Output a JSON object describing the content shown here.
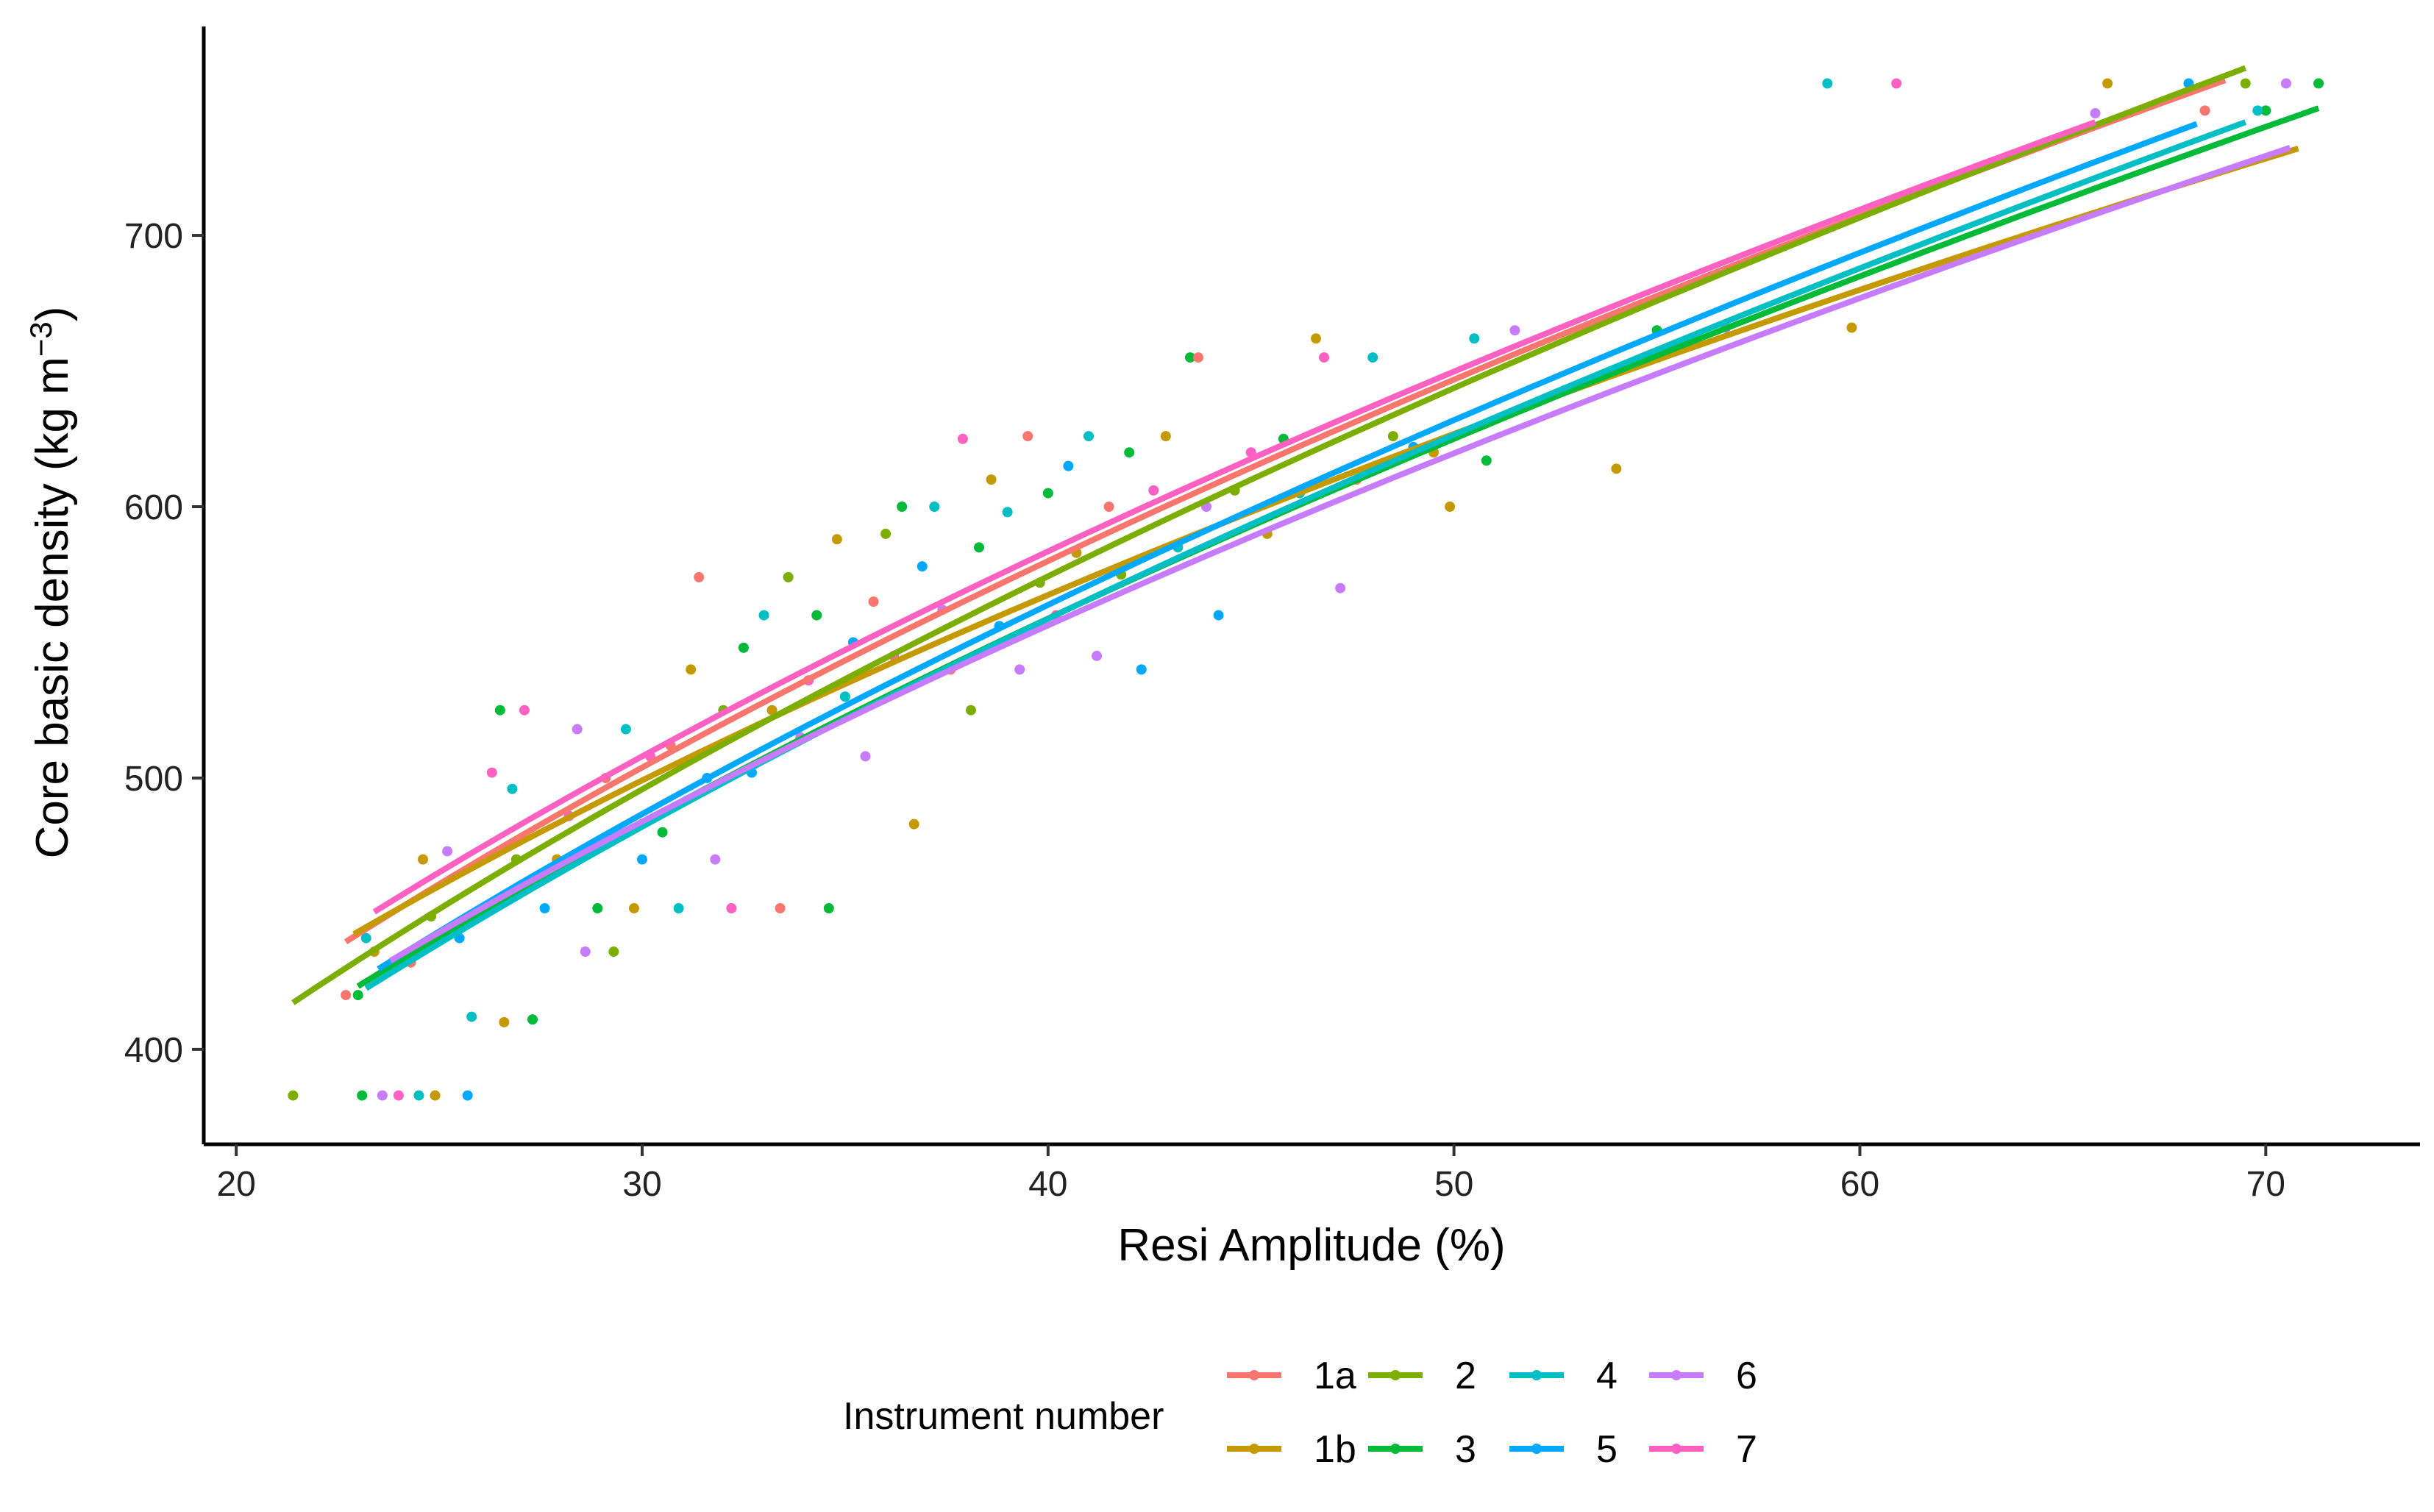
{
  "chart_data": {
    "type": "scatter",
    "xlabel": "Resi Amplitude (%)",
    "ylabel": "Core basic density (kg m−3)",
    "ylabel_parts": {
      "main": "Core basic density (kg m",
      "superscript": "−3",
      "close": ")"
    },
    "xlim": [
      19.2,
      73.8
    ],
    "ylim": [
      365,
      777
    ],
    "x_ticks": [
      20,
      30,
      40,
      50,
      60,
      70
    ],
    "y_ticks": [
      400,
      500,
      600,
      700
    ],
    "x_tick_labels": [
      "20",
      "30",
      "40",
      "50",
      "60",
      "70"
    ],
    "y_tick_labels": [
      "400",
      "500",
      "600",
      "700"
    ],
    "grid": false,
    "legend_title": "Instrument number",
    "legend_position": "bottom",
    "series": [
      {
        "name": "1a",
        "color": "#F8766D",
        "fit_a": 95.5,
        "fit_b": 0.489,
        "x_range": [
          22.7,
          69.0
        ]
      },
      {
        "name": "1b",
        "color": "#C49A00",
        "fit_a": 109.5,
        "fit_b": 0.446,
        "x_range": [
          22.9,
          70.8
        ]
      },
      {
        "name": "2",
        "color": "#7CAE00",
        "fit_a": 87.2,
        "fit_b": 0.511,
        "x_range": [
          21.4,
          69.5
        ]
      },
      {
        "name": "3",
        "color": "#00BA38",
        "fit_a": 87.7,
        "fit_b": 0.502,
        "x_range": [
          23.0,
          71.3
        ]
      },
      {
        "name": "4",
        "color": "#00BFC4",
        "fit_a": 84.2,
        "fit_b": 0.513,
        "x_range": [
          23.2,
          69.5
        ]
      },
      {
        "name": "5",
        "color": "#00A9FF",
        "fit_a": 85.6,
        "fit_b": 0.511,
        "x_range": [
          23.5,
          68.3
        ]
      },
      {
        "name": "6",
        "color": "#C77CFF",
        "fit_a": 93.3,
        "fit_b": 0.484,
        "x_range": [
          23.8,
          70.6
        ]
      },
      {
        "name": "7",
        "color": "#FF61C3",
        "fit_a": 98.6,
        "fit_b": 0.482,
        "x_range": [
          23.4,
          65.8
        ]
      }
    ],
    "points": [
      [
        21.4,
        383,
        2
      ],
      [
        22.7,
        420,
        0
      ],
      [
        23.0,
        420,
        3
      ],
      [
        23.2,
        441,
        4
      ],
      [
        23.4,
        436,
        1
      ],
      [
        23.1,
        383,
        3
      ],
      [
        23.6,
        383,
        6
      ],
      [
        24.0,
        383,
        7
      ],
      [
        24.5,
        383,
        4
      ],
      [
        24.9,
        383,
        1
      ],
      [
        25.7,
        383,
        5
      ],
      [
        24.3,
        432,
        0
      ],
      [
        24.6,
        470,
        1
      ],
      [
        24.8,
        449,
        2
      ],
      [
        25.2,
        473,
        6
      ],
      [
        25.5,
        441,
        5
      ],
      [
        25.8,
        412,
        4
      ],
      [
        26.1,
        452,
        0
      ],
      [
        26.3,
        502,
        7
      ],
      [
        26.5,
        525,
        3
      ],
      [
        26.6,
        410,
        1
      ],
      [
        26.9,
        470,
        2
      ],
      [
        27.1,
        525,
        7
      ],
      [
        27.3,
        411,
        3
      ],
      [
        26.8,
        496,
        4
      ],
      [
        27.6,
        452,
        5
      ],
      [
        27.9,
        470,
        1
      ],
      [
        28.2,
        486,
        7
      ],
      [
        28.4,
        518,
        6
      ],
      [
        28.6,
        436,
        6
      ],
      [
        28.9,
        452,
        3
      ],
      [
        29.1,
        500,
        0
      ],
      [
        29.3,
        436,
        2
      ],
      [
        29.6,
        518,
        4
      ],
      [
        29.8,
        452,
        1
      ],
      [
        30.0,
        470,
        5
      ],
      [
        30.2,
        508,
        7
      ],
      [
        30.5,
        480,
        3
      ],
      [
        30.7,
        512,
        0
      ],
      [
        30.9,
        452,
        4
      ],
      [
        31.2,
        540,
        1
      ],
      [
        31.4,
        574,
        0
      ],
      [
        31.6,
        500,
        5
      ],
      [
        31.8,
        470,
        6
      ],
      [
        32.0,
        525,
        2
      ],
      [
        32.2,
        452,
        7
      ],
      [
        32.5,
        548,
        3
      ],
      [
        32.7,
        502,
        5
      ],
      [
        33.0,
        560,
        4
      ],
      [
        33.2,
        525,
        1
      ],
      [
        33.4,
        452,
        0
      ],
      [
        33.6,
        574,
        2
      ],
      [
        33.9,
        515,
        6
      ],
      [
        34.1,
        536,
        7
      ],
      [
        34.3,
        560,
        3
      ],
      [
        34.6,
        452,
        3
      ],
      [
        34.8,
        588,
        1
      ],
      [
        35.0,
        530,
        4
      ],
      [
        35.2,
        550,
        5
      ],
      [
        35.5,
        508,
        6
      ],
      [
        35.7,
        565,
        0
      ],
      [
        36.0,
        590,
        2
      ],
      [
        36.2,
        545,
        7
      ],
      [
        36.4,
        600,
        3
      ],
      [
        36.7,
        483,
        1
      ],
      [
        36.9,
        578,
        5
      ],
      [
        37.2,
        600,
        4
      ],
      [
        37.4,
        562,
        6
      ],
      [
        37.6,
        540,
        0
      ],
      [
        37.9,
        625,
        7
      ],
      [
        38.1,
        525,
        2
      ],
      [
        38.3,
        585,
        3
      ],
      [
        38.6,
        610,
        1
      ],
      [
        38.8,
        556,
        5
      ],
      [
        39.0,
        598,
        4
      ],
      [
        39.3,
        540,
        6
      ],
      [
        39.5,
        626,
        0
      ],
      [
        39.8,
        572,
        2
      ],
      [
        40.0,
        605,
        3
      ],
      [
        40.2,
        560,
        7
      ],
      [
        40.5,
        615,
        5
      ],
      [
        40.7,
        583,
        1
      ],
      [
        41.0,
        626,
        4
      ],
      [
        41.2,
        545,
        6
      ],
      [
        41.5,
        600,
        0
      ],
      [
        41.8,
        575,
        2
      ],
      [
        42.0,
        620,
        3
      ],
      [
        42.3,
        540,
        5
      ],
      [
        42.6,
        606,
        7
      ],
      [
        42.9,
        626,
        1
      ],
      [
        43.2,
        585,
        4
      ],
      [
        43.5,
        655,
        3
      ],
      [
        43.7,
        655,
        0
      ],
      [
        43.9,
        600,
        6
      ],
      [
        44.2,
        560,
        5
      ],
      [
        44.6,
        606,
        2
      ],
      [
        45.0,
        620,
        7
      ],
      [
        45.4,
        590,
        1
      ],
      [
        45.8,
        625,
        3
      ],
      [
        46.2,
        605,
        4
      ],
      [
        46.6,
        662,
        1
      ],
      [
        46.8,
        655,
        7
      ],
      [
        47.2,
        570,
        6
      ],
      [
        47.6,
        610,
        0
      ],
      [
        48.0,
        655,
        4
      ],
      [
        48.5,
        626,
        2
      ],
      [
        49.0,
        622,
        5
      ],
      [
        49.5,
        620,
        1
      ],
      [
        49.9,
        600,
        1
      ],
      [
        50.5,
        662,
        4
      ],
      [
        50.8,
        617,
        3
      ],
      [
        51.5,
        665,
        6
      ],
      [
        54.0,
        614,
        1
      ],
      [
        55.0,
        665,
        3
      ],
      [
        56.7,
        666,
        6
      ],
      [
        59.2,
        756,
        4
      ],
      [
        59.8,
        666,
        1
      ],
      [
        60.9,
        756,
        7
      ],
      [
        65.8,
        745,
        6
      ],
      [
        66.1,
        756,
        1
      ],
      [
        68.1,
        756,
        5
      ],
      [
        68.5,
        746,
        0
      ],
      [
        69.5,
        756,
        2
      ],
      [
        70.0,
        746,
        3
      ],
      [
        70.5,
        756,
        6
      ],
      [
        71.3,
        756,
        3
      ],
      [
        69.8,
        746,
        4
      ]
    ]
  }
}
